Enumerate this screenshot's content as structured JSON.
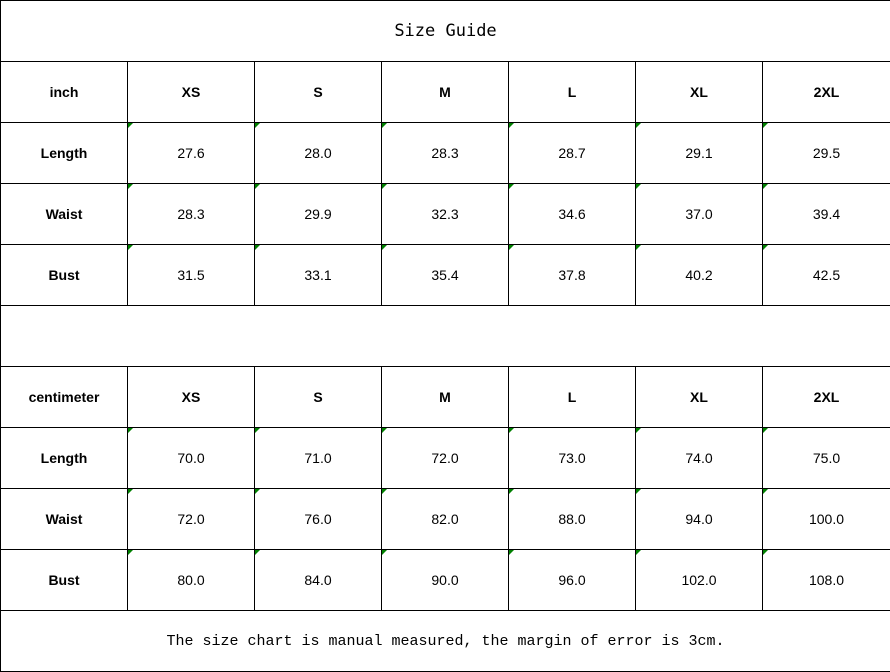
{
  "title": "Size Guide",
  "sizes": [
    "XS",
    "S",
    "M",
    "L",
    "XL",
    "2XL"
  ],
  "tables": [
    {
      "unit": "inch",
      "rows": [
        {
          "label": "Length",
          "values": [
            "27.6",
            "28.0",
            "28.3",
            "28.7",
            "29.1",
            "29.5"
          ]
        },
        {
          "label": "Waist",
          "values": [
            "28.3",
            "29.9",
            "32.3",
            "34.6",
            "37.0",
            "39.4"
          ]
        },
        {
          "label": "Bust",
          "values": [
            "31.5",
            "33.1",
            "35.4",
            "37.8",
            "40.2",
            "42.5"
          ]
        }
      ]
    },
    {
      "unit": "centimeter",
      "rows": [
        {
          "label": "Length",
          "values": [
            "70.0",
            "71.0",
            "72.0",
            "73.0",
            "74.0",
            "75.0"
          ]
        },
        {
          "label": "Waist",
          "values": [
            "72.0",
            "76.0",
            "82.0",
            "88.0",
            "94.0",
            "100.0"
          ]
        },
        {
          "label": "Bust",
          "values": [
            "80.0",
            "84.0",
            "90.0",
            "96.0",
            "102.0",
            "108.0"
          ]
        }
      ]
    }
  ],
  "note": "The size chart is manual measured, the margin of error is 3cm.",
  "colors": {
    "cell_marker": "#008000",
    "border": "#000000"
  }
}
